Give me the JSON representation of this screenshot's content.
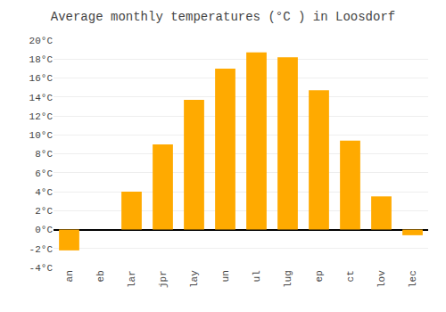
{
  "chart_data": {
    "type": "bar",
    "title": "Average monthly temperatures (°C ) in Loosdorf",
    "categories": [
      "an",
      "eb",
      "lar",
      "jpr",
      "lay",
      "un",
      "ul",
      "lug",
      "ep",
      "ct",
      "lov",
      "lec"
    ],
    "values": [
      -2.2,
      0.0,
      4.0,
      9.0,
      13.7,
      17.0,
      18.7,
      18.2,
      14.7,
      9.4,
      3.5,
      -0.6
    ],
    "color": "#FFAA00",
    "ylim": [
      -4,
      20
    ],
    "yticks": [
      {
        "value": -4,
        "label": "-4°C"
      },
      {
        "value": -2,
        "label": "-2°C"
      },
      {
        "value": 0,
        "label": "0°C"
      },
      {
        "value": 2,
        "label": "2°C"
      },
      {
        "value": 4,
        "label": "4°C"
      },
      {
        "value": 6,
        "label": "6°C"
      },
      {
        "value": 8,
        "label": "8°C"
      },
      {
        "value": 10,
        "label": "10°C"
      },
      {
        "value": 12,
        "label": "12°C"
      },
      {
        "value": 14,
        "label": "14°C"
      },
      {
        "value": 16,
        "label": "16°C"
      },
      {
        "value": 18,
        "label": "18°C"
      },
      {
        "value": 20,
        "label": "20°C"
      }
    ],
    "grid": true
  }
}
